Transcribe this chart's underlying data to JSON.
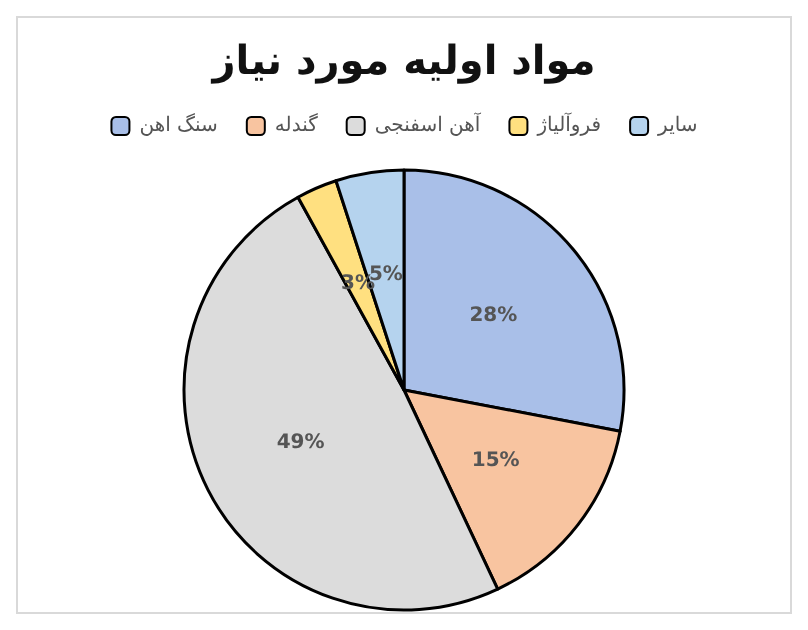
{
  "chart_data": {
    "type": "pie",
    "title": "مواد اولیه مورد نیاز",
    "categories": [
      "سنگ اهن",
      "گندله",
      "آهن اسفنجی",
      "فروآلیاژ",
      "سایر"
    ],
    "values": [
      28,
      15,
      49,
      3,
      5
    ],
    "colors": [
      "#a9bfe8",
      "#f8c4a0",
      "#dcdcdc",
      "#ffe080",
      "#b5d3ee"
    ],
    "value_labels": [
      "28%",
      "15%",
      "49%",
      "3%",
      "5%"
    ],
    "legend": "top"
  }
}
